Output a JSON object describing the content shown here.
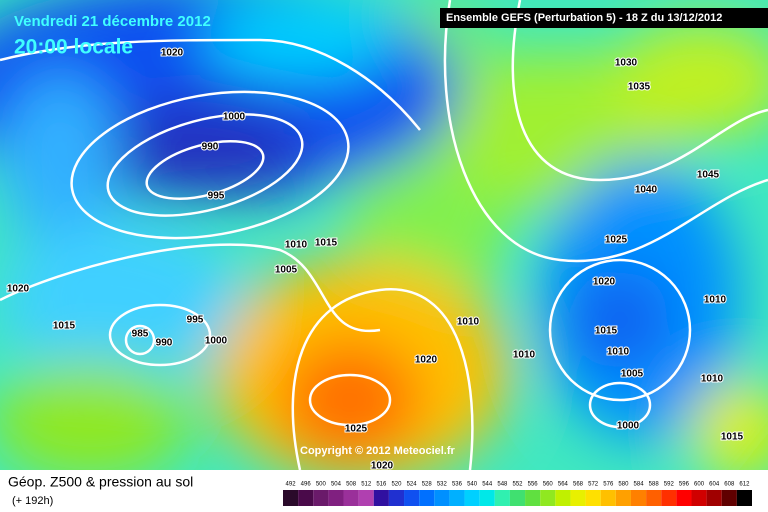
{
  "header": {
    "title": "Vendredi 21 décembre 2012",
    "time": "20:00 locale",
    "model": "Ensemble GEFS (Perturbation 5)  -  18 Z du 13/12/2012"
  },
  "copyright": "Copyright © 2012 Meteociel.fr",
  "caption": {
    "title": "Géop. Z500 & pression au sol",
    "lead": "(+ 192h)"
  },
  "isobar_labels": [
    1020,
    1000,
    990,
    995,
    1010,
    1015,
    1005,
    985,
    990,
    995,
    1000,
    1020,
    1015,
    1020,
    1025,
    1020,
    1010,
    1010,
    1030,
    1035,
    1040,
    1045,
    1025,
    1020,
    1010,
    1015,
    1010,
    1005,
    1010,
    1000,
    1015
  ],
  "legend": {
    "values": [
      492,
      496,
      500,
      504,
      508,
      512,
      516,
      520,
      524,
      528,
      532,
      536,
      540,
      544,
      548,
      552,
      556,
      560,
      564,
      568,
      572,
      576,
      580,
      584,
      588,
      592,
      596,
      600,
      604,
      608,
      612
    ],
    "colors": [
      "#2a0a2a",
      "#4a0a4a",
      "#6a1a6a",
      "#802080",
      "#9a309a",
      "#b040b0",
      "#3010a0",
      "#2030d0",
      "#1050f0",
      "#0070ff",
      "#0090ff",
      "#00b0ff",
      "#00d0ff",
      "#00e8e8",
      "#30f0b0",
      "#40e070",
      "#60e040",
      "#90e820",
      "#c0f000",
      "#e8f000",
      "#ffe000",
      "#ffc000",
      "#ffa000",
      "#ff8000",
      "#ff6000",
      "#ff3000",
      "#ff0000",
      "#d00000",
      "#a00000",
      "#600000",
      "#000000"
    ]
  }
}
